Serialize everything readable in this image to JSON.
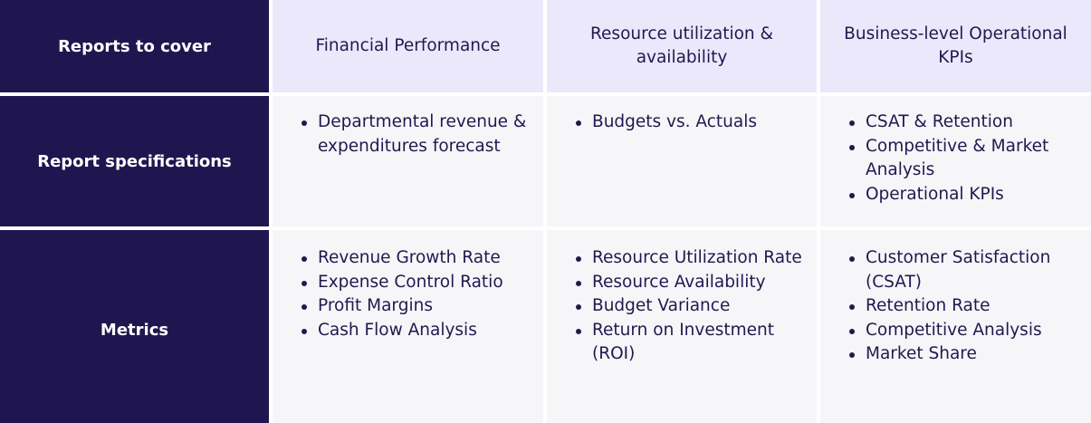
{
  "rows": {
    "header_label": "Reports to cover",
    "specs_label": "Report specifications",
    "metrics_label": "Metrics"
  },
  "columns": [
    {
      "title": "Financial Performance",
      "specs": [
        "Departmental revenue & expenditures forecast"
      ],
      "metrics": [
        "Revenue Growth Rate",
        "Expense Control Ratio",
        "Profit Margins",
        "Cash Flow Analysis"
      ]
    },
    {
      "title": "Resource utilization & availability",
      "specs": [
        "Budgets vs. Actuals"
      ],
      "metrics": [
        "Resource Utilization Rate",
        "Resource Availability",
        "Budget Variance",
        "Return on Investment (ROI)"
      ]
    },
    {
      "title": "Business-level Operational KPIs",
      "specs": [
        "CSAT & Retention",
        "Competitive & Market Analysis",
        "Operational KPIs"
      ],
      "metrics": [
        "Customer Satisfaction (CSAT)",
        "Retention Rate",
        "Competitive Analysis",
        "Market Share"
      ]
    }
  ],
  "colors": {
    "row_header_bg": "#1f1650",
    "column_header_bg": "#ebe8fb",
    "cell_bg": "#f6f6f9",
    "text": "#1f1a4e"
  }
}
